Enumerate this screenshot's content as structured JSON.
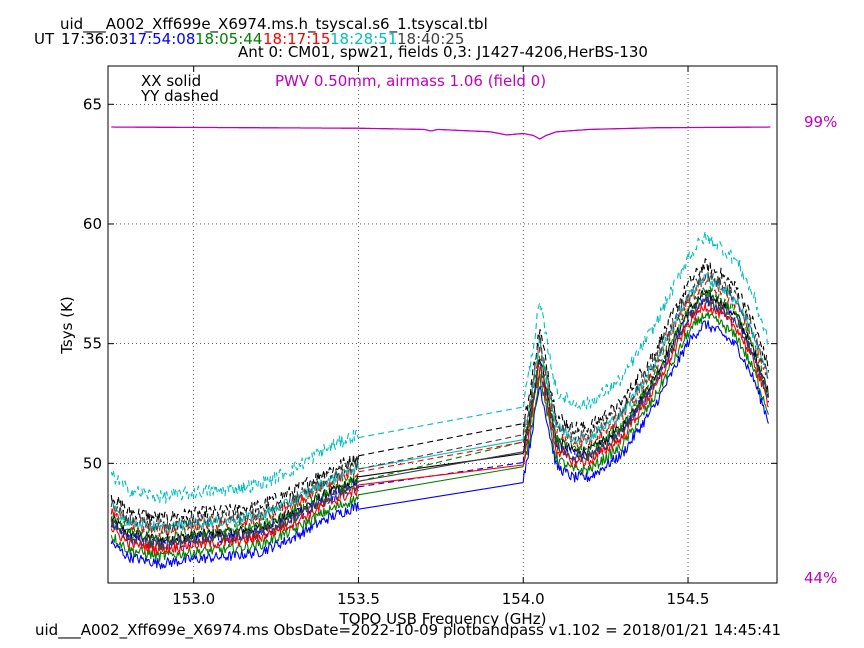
{
  "header": {
    "filename": "uid___A002_Xff699e_X6974.ms.h_tsyscal.s6_1.tsyscal.tbl",
    "ut_label": "UT",
    "times": [
      {
        "text": "17:36:03",
        "color": "#000000"
      },
      {
        "text": "17:54:08",
        "color": "#0000ff"
      },
      {
        "text": "18:05:44",
        "color": "#008000"
      },
      {
        "text": "18:17:15",
        "color": "#ff0000"
      },
      {
        "text": "18:28:51",
        "color": "#00bfbf"
      },
      {
        "text": "18:40:25",
        "color": "#404040"
      }
    ],
    "subtitle": "Ant 0: CM01,  spw21,  fields 0,3: J1427-4206,HerBS-130"
  },
  "legend": {
    "xx": "XX solid",
    "yy": "YY dashed",
    "pwv": "PWV 0.50mm, airmass 1.06 (field 0)"
  },
  "right_labels": {
    "top": "99%",
    "bottom": "44%"
  },
  "footer": "uid___A002_Xff699e_X6974.ms  ObsDate=2022-10-09   plotbandpass v1.102 = 2018/01/21 14:45:41",
  "colors": {
    "accent": "#c000c0"
  },
  "chart_data": {
    "type": "line",
    "xlabel": "TOPO USB Frequency (GHz)",
    "ylabel": "Tsys (K)",
    "xlim": [
      152.74,
      154.77
    ],
    "ylim": [
      45.0,
      66.6
    ],
    "xticks": [
      153.0,
      153.5,
      154.0,
      154.5
    ],
    "xtick_labels": [
      "153.0",
      "153.5",
      "154.0",
      "154.5"
    ],
    "yticks": [
      50,
      55,
      60,
      65
    ],
    "ytick_labels": [
      "50",
      "55",
      "60",
      "65"
    ],
    "grid": true,
    "band_gap": [
      153.5,
      154.0
    ],
    "profile": {
      "x": [
        152.75,
        152.8,
        152.9,
        153.0,
        153.1,
        153.2,
        153.3,
        153.4,
        153.45,
        153.5,
        154.0,
        154.02,
        154.05,
        154.1,
        154.15,
        154.2,
        154.3,
        154.4,
        154.5,
        154.55,
        154.6,
        154.65,
        154.7,
        154.75
      ],
      "y": [
        0.6,
        0.0,
        -0.3,
        -0.1,
        0.0,
        0.2,
        0.8,
        1.6,
        1.9,
        2.2,
        3.4,
        4.8,
        7.4,
        3.9,
        3.4,
        3.4,
        4.4,
        6.5,
        9.2,
        10.0,
        9.6,
        9.0,
        7.6,
        5.6
      ]
    },
    "series": [
      {
        "name": "17:36:03 XX",
        "color": "#000000",
        "offset": 47.1,
        "dash": false
      },
      {
        "name": "17:36:03 YY",
        "color": "#000000",
        "offset": 48.0,
        "dash": true
      },
      {
        "name": "17:54:08 XX",
        "color": "#0000ff",
        "offset": 46.1,
        "dash": false
      },
      {
        "name": "17:54:08 YY",
        "color": "#0000ff",
        "offset": 46.9,
        "dash": true
      },
      {
        "name": "18:05:44 XX",
        "color": "#008000",
        "offset": 46.4,
        "dash": false
      },
      {
        "name": "18:05:44 YY",
        "color": "#008000",
        "offset": 47.2,
        "dash": true
      },
      {
        "name": "18:17:15 XX",
        "color": "#ff0000",
        "offset": 46.7,
        "dash": false
      },
      {
        "name": "18:17:15 YY",
        "color": "#ff0000",
        "offset": 47.5,
        "dash": true
      },
      {
        "name": "18:28:51 XX",
        "color": "#00bfbf",
        "offset": 47.6,
        "dash": false
      },
      {
        "name": "18:28:51 YY",
        "color": "#00bfbf",
        "offset": 48.9,
        "dash": true
      },
      {
        "name": "18:40:25 XX",
        "color": "#404040",
        "offset": 46.9,
        "dash": false
      },
      {
        "name": "18:40:25 YY",
        "color": "#404040",
        "offset": 47.7,
        "dash": true
      }
    ],
    "transmission": {
      "color": "#c000c0",
      "x": [
        152.75,
        153.5,
        153.7,
        153.72,
        153.74,
        153.9,
        153.95,
        154.0,
        154.03,
        154.05,
        154.07,
        154.1,
        154.2,
        154.4,
        154.75
      ],
      "y": [
        64.05,
        64.0,
        63.95,
        63.88,
        63.95,
        63.85,
        63.72,
        63.78,
        63.7,
        63.55,
        63.7,
        63.85,
        63.95,
        64.02,
        64.05
      ]
    }
  }
}
